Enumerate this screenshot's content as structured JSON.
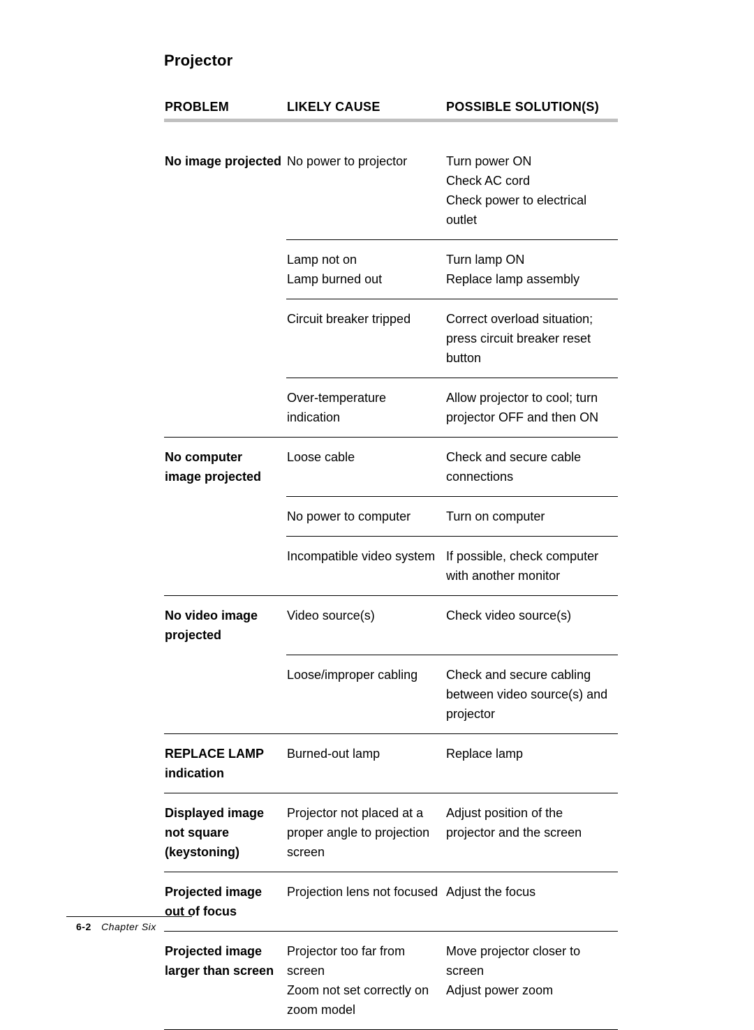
{
  "section_title": "Projector",
  "table": {
    "columns": [
      "PROBLEM",
      "LIKELY CAUSE",
      "POSSIBLE SOLUTION(S)"
    ],
    "header_rule_color": "#c0c0c0",
    "row_rule_color": "#000000",
    "font_size_pt": 13,
    "rows": [
      {
        "problem": "No image projected",
        "cause": "No power to projector",
        "solution": "Turn power ON\nCheck AC cord\nCheck power to electrical outlet",
        "top_line": false
      },
      {
        "problem": "",
        "cause": "Lamp not on\nLamp burned out",
        "solution": "Turn lamp ON\nReplace lamp assembly",
        "top_line": true,
        "line_from_col": 2
      },
      {
        "problem": "",
        "cause": "Circuit breaker tripped",
        "solution": "Correct overload situation; press circuit breaker reset button",
        "top_line": true,
        "line_from_col": 2
      },
      {
        "problem": "",
        "cause": "Over-temperature indication",
        "solution": "Allow projector to cool; turn projector OFF and then ON",
        "top_line": true,
        "line_from_col": 2
      },
      {
        "problem": "No computer image projected",
        "cause": "Loose cable",
        "solution": "Check and secure cable connections",
        "top_line": true,
        "line_from_col": 1
      },
      {
        "problem": "",
        "cause": "No power to computer",
        "solution": "Turn on computer",
        "top_line": true,
        "line_from_col": 2
      },
      {
        "problem": "",
        "cause": "Incompatible video system",
        "solution": "If possible, check computer with another monitor",
        "top_line": true,
        "line_from_col": 2
      },
      {
        "problem": "No video image projected",
        "cause": "Video source(s)",
        "solution": "Check video source(s)",
        "top_line": true,
        "line_from_col": 1
      },
      {
        "problem": "",
        "cause": "Loose/improper cabling",
        "solution": "Check and secure cabling between video source(s) and projector",
        "top_line": true,
        "line_from_col": 2
      },
      {
        "problem": "REPLACE LAMP indication",
        "cause": "Burned-out lamp",
        "solution": "Replace lamp",
        "top_line": true,
        "line_from_col": 1
      },
      {
        "problem": "Displayed image not square (keystoning)",
        "cause": "Projector not placed at a proper angle to projection screen",
        "solution": "Adjust position of the projector and the screen",
        "top_line": true,
        "line_from_col": 1
      },
      {
        "problem": "Projected image out of focus",
        "cause": "Projection lens not focused",
        "solution": "Adjust the focus",
        "top_line": true,
        "line_from_col": 1
      },
      {
        "problem": "Projected image larger than screen",
        "cause": "Projector too far from screen\nZoom not set correctly on zoom model",
        "solution": "Move projector closer to screen\nAdjust power zoom",
        "top_line": true,
        "line_from_col": 1,
        "bottom_line": true
      }
    ]
  },
  "footer": {
    "page_number": "6-2",
    "chapter_label": "Chapter Six"
  }
}
